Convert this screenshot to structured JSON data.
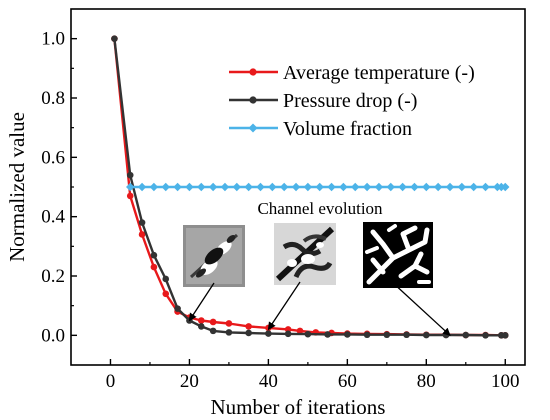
{
  "chart_data": {
    "type": "line",
    "title": "",
    "xlabel": "Number of iterations",
    "ylabel": "Normalized value",
    "xlim": [
      -10,
      105
    ],
    "ylim": [
      -0.1,
      1.1
    ],
    "xticks": [
      0,
      20,
      40,
      60,
      80,
      100
    ],
    "yticks": [
      0.0,
      0.2,
      0.4,
      0.6,
      0.8,
      1.0
    ],
    "xtick_labels": [
      "0",
      "20",
      "40",
      "60",
      "80",
      "100"
    ],
    "ytick_labels": [
      "0.0",
      "0.2",
      "0.4",
      "0.6",
      "0.8",
      "1.0"
    ],
    "grid": false,
    "legend_position": "top-right",
    "series": [
      {
        "name": "Average temperature (-)",
        "color": "#e8191b",
        "marker": "circle",
        "points": [
          [
            1,
            1.0
          ],
          [
            5,
            0.47
          ],
          [
            8,
            0.34
          ],
          [
            11,
            0.23
          ],
          [
            14,
            0.14
          ],
          [
            17,
            0.08
          ],
          [
            20,
            0.06
          ],
          [
            23,
            0.05
          ],
          [
            26,
            0.045
          ],
          [
            30,
            0.04
          ],
          [
            35,
            0.03
          ],
          [
            40,
            0.025
          ],
          [
            45,
            0.02
          ],
          [
            48,
            0.015
          ],
          [
            52,
            0.01
          ],
          [
            56,
            0.008
          ],
          [
            60,
            0.006
          ],
          [
            65,
            0.005
          ],
          [
            70,
            0.004
          ],
          [
            75,
            0.003
          ],
          [
            80,
            0.002
          ],
          [
            85,
            0.002
          ],
          [
            90,
            0.001
          ],
          [
            95,
            0.001
          ],
          [
            99,
            0.0
          ],
          [
            100,
            0.0
          ]
        ]
      },
      {
        "name": "Pressure drop (-)",
        "color": "#333333",
        "marker": "circle",
        "points": [
          [
            1,
            1.0
          ],
          [
            5,
            0.54
          ],
          [
            8,
            0.38
          ],
          [
            11,
            0.27
          ],
          [
            14,
            0.19
          ],
          [
            17,
            0.09
          ],
          [
            20,
            0.05
          ],
          [
            23,
            0.03
          ],
          [
            26,
            0.015
          ],
          [
            30,
            0.01
          ],
          [
            35,
            0.008
          ],
          [
            40,
            0.006
          ],
          [
            45,
            0.005
          ],
          [
            50,
            0.004
          ],
          [
            55,
            0.003
          ],
          [
            60,
            0.003
          ],
          [
            65,
            0.002
          ],
          [
            70,
            0.002
          ],
          [
            75,
            0.002
          ],
          [
            80,
            0.001
          ],
          [
            85,
            0.001
          ],
          [
            90,
            0.001
          ],
          [
            95,
            0.0
          ],
          [
            99,
            0.0
          ],
          [
            100,
            0.0
          ]
        ]
      },
      {
        "name": "Volume fraction",
        "color": "#4cb3e8",
        "marker": "diamond",
        "points": [
          [
            5,
            0.5
          ],
          [
            8,
            0.5
          ],
          [
            11,
            0.5
          ],
          [
            14,
            0.5
          ],
          [
            17,
            0.5
          ],
          [
            20,
            0.5
          ],
          [
            23,
            0.5
          ],
          [
            26,
            0.5
          ],
          [
            29,
            0.5
          ],
          [
            32,
            0.5
          ],
          [
            35,
            0.5
          ],
          [
            38,
            0.5
          ],
          [
            41,
            0.5
          ],
          [
            44,
            0.5
          ],
          [
            47,
            0.5
          ],
          [
            50,
            0.5
          ],
          [
            53,
            0.5
          ],
          [
            56,
            0.5
          ],
          [
            59,
            0.5
          ],
          [
            62,
            0.5
          ],
          [
            65,
            0.5
          ],
          [
            68,
            0.5
          ],
          [
            71,
            0.5
          ],
          [
            74,
            0.5
          ],
          [
            77,
            0.5
          ],
          [
            80,
            0.5
          ],
          [
            83,
            0.5
          ],
          [
            86,
            0.5
          ],
          [
            89,
            0.5
          ],
          [
            92,
            0.5
          ],
          [
            95,
            0.5
          ],
          [
            98,
            0.5
          ],
          [
            99,
            0.5
          ],
          [
            100,
            0.5
          ]
        ]
      }
    ],
    "annotations": [
      {
        "text": "Channel evolution"
      }
    ],
    "inset_arrow_targets": [
      {
        "inset": "early",
        "x": 20,
        "y": 0.05
      },
      {
        "inset": "middle",
        "x": 40,
        "y": 0.02
      },
      {
        "inset": "final",
        "x": 86,
        "y": 0.0
      }
    ]
  },
  "colors": {
    "axis": "#000000",
    "average_temperature": "#e8191b",
    "pressure_drop": "#333333",
    "volume_fraction": "#4cb3e8"
  }
}
